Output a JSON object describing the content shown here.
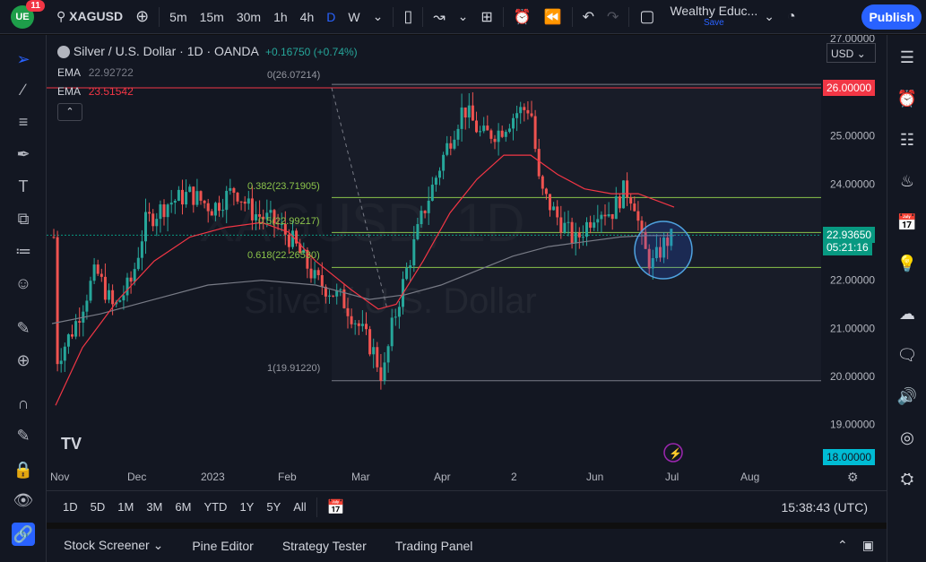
{
  "topbar": {
    "notification_count": "11",
    "symbol": "XAGUSD",
    "intervals": [
      "5m",
      "15m",
      "30m",
      "1h",
      "4h",
      "D",
      "W"
    ],
    "active_interval": "D",
    "layout_name": "Wealthy Educ...",
    "save_label": "Save",
    "publish_label": "Publish"
  },
  "legend": {
    "title": "Silver / U.S. Dollar · 1D · OANDA",
    "change": "+0.16750 (+0.74%)",
    "ema1_label": "EMA",
    "ema1_value": "22.92722",
    "ema2_label": "EMA",
    "ema2_value": "23.51542"
  },
  "watermark": {
    "symbol": "XAGUSD, 1D",
    "name": "Silver / U.S. Dollar"
  },
  "currency": "USD",
  "fib_labels": {
    "f0": "0(26.07214)",
    "f382": "0.382(23.71905)",
    "f5": "0.5(22.99217)",
    "f618": "0.618(22.26530)",
    "f1": "1(19.91220)"
  },
  "price_tags": {
    "top": "26.00000",
    "current": "22.93650",
    "countdown": "05:21:16",
    "bottom": "18.00000"
  },
  "chart_data": {
    "type": "candlestick",
    "title": "Silver / U.S. Dollar · 1D · OANDA",
    "ylim": [
      18.5,
      27.2
    ],
    "y_ticks": [
      "27.00000",
      "25.00000",
      "24.00000",
      "22.00000",
      "21.00000",
      "20.00000",
      "19.00000"
    ],
    "x_ticks": [
      "Nov",
      "Dec",
      "2023",
      "Feb",
      "Mar",
      "Apr",
      "2",
      "Jun",
      "Jul",
      "Aug"
    ],
    "horizontal_lines": [
      26.0,
      23.72,
      22.26
    ],
    "fib_levels": [
      {
        "level": "0",
        "price": 26.07214
      },
      {
        "level": "0.382",
        "price": 23.71905
      },
      {
        "level": "0.5",
        "price": 22.99217
      },
      {
        "level": "0.618",
        "price": 22.2653
      },
      {
        "level": "1",
        "price": 19.9122
      }
    ],
    "ema_fast_last": 22.92722,
    "ema_slow_last": 23.51542,
    "current_price": 22.9365
  },
  "bottombar": {
    "ranges": [
      "1D",
      "5D",
      "1M",
      "3M",
      "6M",
      "YTD",
      "1Y",
      "5Y",
      "All"
    ],
    "clock": "15:38:43 (UTC)"
  },
  "panels": [
    "Stock Screener",
    "Pine Editor",
    "Strategy Tester",
    "Trading Panel"
  ],
  "colors": {
    "up": "#26a69a",
    "down": "#ef5350",
    "ema_fast": "#f23645",
    "ema_slow": "#787b86",
    "accent": "#2962ff"
  }
}
